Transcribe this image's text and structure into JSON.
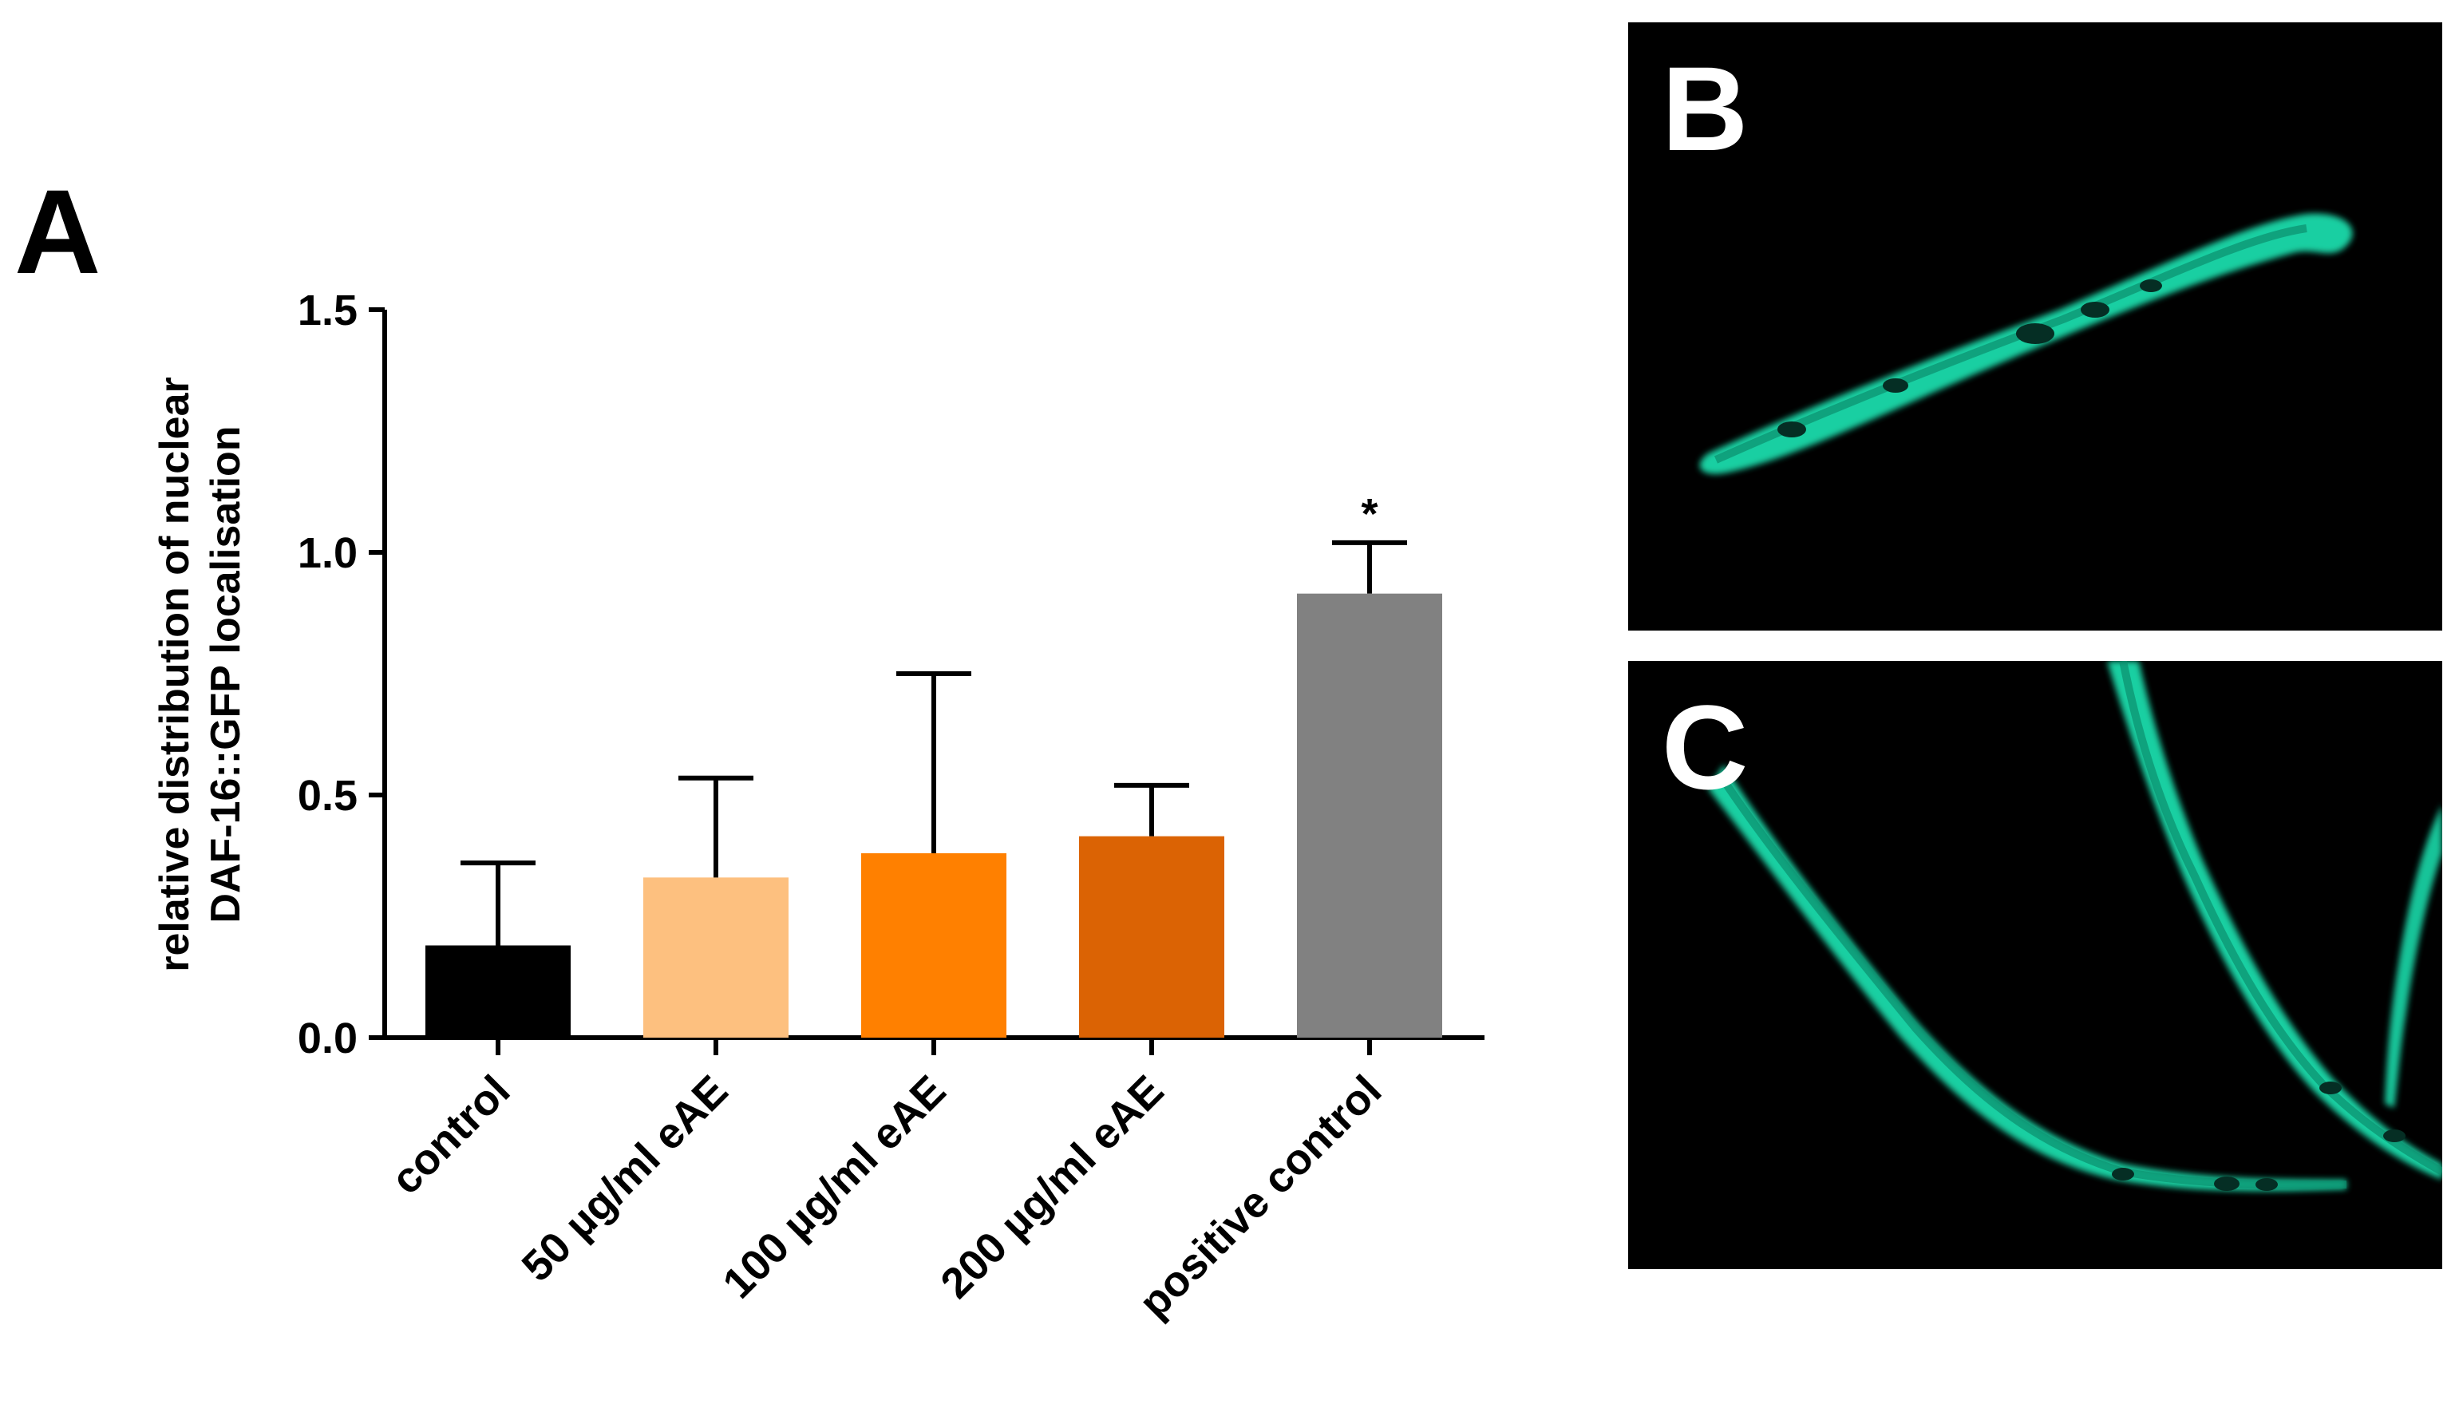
{
  "figure": {
    "panel_a_label": "A",
    "panel_b_label": "B",
    "panel_c_label": "C"
  },
  "chart_data": {
    "type": "bar",
    "title": "",
    "xlabel": "",
    "ylabel": [
      "relative distribution of nuclear",
      "DAF-16::GFP localisation"
    ],
    "ylim": [
      0,
      1.5
    ],
    "yticks": [
      0.0,
      0.5,
      1.0,
      1.5
    ],
    "ytick_labels": [
      "0.0",
      "0.5",
      "1.0",
      "1.5"
    ],
    "categories": [
      "control",
      "50 µg/ml eAE",
      "100 µg/ml eAE",
      "200 µg/ml eAE",
      "positive control"
    ],
    "values": [
      0.19,
      0.33,
      0.38,
      0.415,
      0.915
    ],
    "error_upper": [
      0.36,
      0.535,
      0.75,
      0.52,
      1.02
    ],
    "colors": [
      "#000000",
      "#FDC07F",
      "#FF8000",
      "#DB6304",
      "#818181"
    ],
    "annotations": [
      {
        "category": "positive control",
        "text": "*"
      }
    ]
  },
  "micrographs": {
    "panel_b": {
      "subject": "C. elegans DAF-16::GFP",
      "fluorescence_color": "#1FE6B4"
    },
    "panel_c": {
      "subject": "C. elegans DAF-16::GFP",
      "fluorescence_color": "#1FE6B4"
    }
  }
}
